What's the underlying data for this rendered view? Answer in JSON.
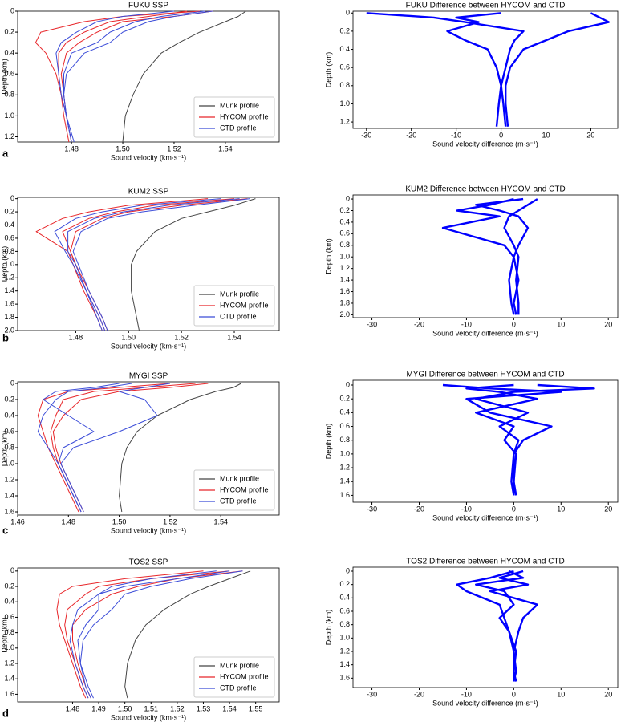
{
  "panel_labels": [
    "a",
    "b",
    "c",
    "d"
  ],
  "chart_data": [
    {
      "type": "line",
      "title": "FUKU SSP",
      "xlabel": "Sound velocity (km·s⁻¹)",
      "ylabel": "Depth (km)",
      "legend": "lower right",
      "xlim": [
        1.459,
        1.561
      ],
      "ylim": [
        0,
        1.25
      ],
      "xticks": [
        1.48,
        {
          "value": 1.5,
          "label": "1.50"
        },
        1.52,
        1.54
      ],
      "yticks": [
        0,
        0.2,
        0.4,
        0.6,
        0.8,
        {
          "value": 1,
          "label": "1.0"
        },
        1.2
      ],
      "y": [
        0,
        0.05,
        0.1,
        0.2,
        0.3,
        0.4,
        0.6,
        0.8,
        1.0,
        1.25
      ],
      "series": [
        {
          "name": "Munk profile",
          "color": "#444444",
          "values": [
            [
              1.548,
              1.545,
              1.54,
              1.53,
              1.522,
              1.515,
              1.508,
              1.504,
              1.501,
              1.5
            ]
          ]
        },
        {
          "name": "HYCOM profile",
          "color": "#e8262a",
          "values": [
            [
              1.535,
              1.52,
              1.5,
              1.49,
              1.483,
              1.478,
              1.476,
              1.477,
              1.478,
              1.48
            ],
            [
              1.525,
              1.51,
              1.495,
              1.485,
              1.478,
              1.475,
              1.475,
              1.476,
              1.477,
              1.479
            ],
            [
              1.53,
              1.5,
              1.485,
              1.468,
              1.466,
              1.47,
              1.474,
              1.476,
              1.478,
              1.48
            ]
          ]
        },
        {
          "name": "CTD profile",
          "color": "#3b4cd8",
          "values": [
            [
              1.532,
              1.515,
              1.505,
              1.495,
              1.49,
              1.48,
              1.477,
              1.477,
              1.478,
              1.48
            ],
            [
              1.52,
              1.5,
              1.49,
              1.482,
              1.476,
              1.474,
              1.475,
              1.476,
              1.478,
              1.481
            ],
            [
              1.535,
              1.52,
              1.51,
              1.5,
              1.495,
              1.485,
              1.478,
              1.477,
              1.478,
              1.48
            ]
          ]
        }
      ]
    },
    {
      "type": "line",
      "title": "FUKU Difference between HYCOM and CTD",
      "xlabel": "Sound velocity difference (m·s⁻¹)",
      "ylabel": "Depth (km)",
      "xlim": [
        -33,
        26
      ],
      "ylim": [
        -0.02,
        1.27
      ],
      "xticks": [
        -30,
        -20,
        -10,
        0,
        10,
        20
      ],
      "yticks": [
        0,
        0.2,
        0.4,
        0.6,
        0.8,
        {
          "value": 1,
          "label": "1.0"
        },
        1.2
      ],
      "y": [
        0,
        0.05,
        0.1,
        0.2,
        0.3,
        0.4,
        0.6,
        0.8,
        1.0,
        1.25
      ],
      "series": [
        {
          "color": "#0000ff",
          "values": [
            [
              0,
              -10,
              -5,
              -12,
              -8,
              -3,
              -1,
              0,
              0.5,
              1
            ],
            [
              -30,
              -15,
              -8,
              5,
              3,
              2,
              1,
              0,
              -0.5,
              -1
            ],
            [
              20,
              22,
              24,
              15,
              10,
              5,
              2,
              1,
              1,
              1.5
            ]
          ]
        }
      ]
    },
    {
      "type": "line",
      "title": "KUM2 SSP",
      "xlabel": "Sound velocity (km·s⁻¹)",
      "ylabel": "Depth (km)",
      "legend": "lower right",
      "xlim": [
        1.458,
        1.557
      ],
      "ylim": [
        -0.02,
        2
      ],
      "xticks": [
        1.48,
        {
          "value": 1.5,
          "label": "1.50"
        },
        1.52,
        1.54
      ],
      "yticks": [
        0,
        0.2,
        0.4,
        0.6,
        0.8,
        {
          "value": 1,
          "label": "1.0"
        },
        1.2,
        1.4,
        1.6,
        1.8,
        {
          "value": 2,
          "label": "2.0"
        }
      ],
      "y": [
        0,
        0.1,
        0.2,
        0.3,
        0.5,
        0.8,
        1.0,
        1.4,
        1.8,
        2.0
      ],
      "series": [
        {
          "name": "Munk profile",
          "color": "#444444",
          "values": [
            [
              1.548,
              1.54,
              1.53,
              1.52,
              1.51,
              1.503,
              1.501,
              1.501,
              1.503,
              1.504
            ]
          ]
        },
        {
          "name": "HYCOM profile",
          "color": "#e8262a",
          "values": [
            [
              1.54,
              1.51,
              1.495,
              1.485,
              1.475,
              1.478,
              1.48,
              1.484,
              1.489,
              1.491
            ],
            [
              1.53,
              1.5,
              1.485,
              1.475,
              1.465,
              1.477,
              1.479,
              1.483,
              1.488,
              1.49
            ],
            [
              1.545,
              1.52,
              1.5,
              1.49,
              1.48,
              1.478,
              1.48,
              1.485,
              1.49,
              1.492
            ]
          ]
        },
        {
          "name": "CTD profile",
          "color": "#3b4cd8",
          "values": [
            [
              1.542,
              1.515,
              1.498,
              1.487,
              1.477,
              1.477,
              1.48,
              1.484,
              1.489,
              1.491
            ],
            [
              1.535,
              1.505,
              1.49,
              1.48,
              1.472,
              1.476,
              1.479,
              1.484,
              1.488,
              1.49
            ],
            [
              1.546,
              1.525,
              1.505,
              1.492,
              1.482,
              1.479,
              1.481,
              1.485,
              1.49,
              1.492
            ]
          ]
        }
      ]
    },
    {
      "type": "line",
      "title": "KUM2 Difference between HYCOM and CTD",
      "xlabel": "Sound velocity difference (m·s⁻¹)",
      "ylabel": "Depth (km)",
      "xlim": [
        -34,
        22
      ],
      "ylim": [
        -0.07,
        2.05
      ],
      "xticks": [
        -30,
        -20,
        -10,
        0,
        10,
        20
      ],
      "yticks": [
        0,
        0.2,
        0.4,
        0.6,
        0.8,
        {
          "value": 1,
          "label": "1.0"
        },
        1.2,
        1.4,
        1.6,
        1.8,
        {
          "value": 2,
          "label": "2.0"
        }
      ],
      "y": [
        0,
        0.1,
        0.2,
        0.3,
        0.5,
        0.8,
        1.0,
        1.4,
        1.8,
        2.0
      ],
      "series": [
        {
          "color": "#0000ff",
          "values": [
            [
              0,
              -5,
              -12,
              -3,
              -15,
              -2,
              0,
              1,
              0,
              0.5
            ],
            [
              2,
              -8,
              -3,
              1,
              3,
              1,
              0,
              -1,
              -0.5,
              0
            ],
            [
              5,
              3,
              1,
              -1,
              -2,
              0,
              1,
              0.5,
              1,
              1
            ]
          ]
        }
      ]
    },
    {
      "type": "line",
      "title": "MYGI SSP",
      "xlabel": "Sound velocity (km·s⁻¹)",
      "ylabel": "Depth (km)",
      "legend": "lower right",
      "xlim": [
        1.46,
        1.563
      ],
      "ylim": [
        -0.02,
        1.64
      ],
      "xticks": [
        1.46,
        1.48,
        {
          "value": 1.5,
          "label": "1.50"
        },
        1.52,
        1.54
      ],
      "yticks": [
        0,
        0.2,
        0.4,
        0.6,
        0.8,
        {
          "value": 1,
          "label": "1.0"
        },
        1.2,
        1.4,
        1.6
      ],
      "y": [
        0,
        0.05,
        0.1,
        0.2,
        0.4,
        0.6,
        0.8,
        1.0,
        1.4,
        1.6
      ],
      "series": [
        {
          "name": "Munk profile",
          "color": "#444444",
          "values": [
            [
              1.548,
              1.545,
              1.538,
              1.528,
              1.515,
              1.507,
              1.503,
              1.501,
              1.5,
              1.501
            ]
          ]
        },
        {
          "name": "HYCOM profile",
          "color": "#e8262a",
          "values": [
            [
              1.53,
              1.51,
              1.49,
              1.478,
              1.475,
              1.473,
              1.474,
              1.476,
              1.482,
              1.485
            ],
            [
              1.52,
              1.5,
              1.48,
              1.47,
              1.468,
              1.47,
              1.472,
              1.475,
              1.481,
              1.484
            ],
            [
              1.535,
              1.52,
              1.5,
              1.485,
              1.478,
              1.474,
              1.475,
              1.477,
              1.483,
              1.486
            ]
          ]
        },
        {
          "name": "CTD profile",
          "color": "#3b4cd8",
          "values": [
            [
              1.5,
              1.49,
              1.475,
              1.47,
              1.48,
              1.49,
              1.478,
              1.476,
              1.482,
              1.485
            ],
            [
              1.52,
              1.51,
              1.5,
              1.51,
              1.515,
              1.5,
              1.482,
              1.477,
              1.483,
              1.486
            ],
            [
              1.505,
              1.495,
              1.48,
              1.475,
              1.47,
              1.468,
              1.472,
              1.476,
              1.482,
              1.485
            ]
          ]
        }
      ]
    },
    {
      "type": "line",
      "title": "MYGI Difference between HYCOM and CTD",
      "xlabel": "Sound velocity difference (m·s⁻¹)",
      "ylabel": "Depth (km)",
      "xlim": [
        -34,
        22
      ],
      "ylim": [
        -0.07,
        1.7
      ],
      "xticks": [
        -30,
        -20,
        -10,
        0,
        10,
        20
      ],
      "yticks": [
        0,
        0.2,
        0.4,
        0.6,
        0.8,
        {
          "value": 1,
          "label": "1.0"
        },
        1.2,
        1.4,
        1.6
      ],
      "y": [
        0,
        0.05,
        0.1,
        0.2,
        0.4,
        0.6,
        0.8,
        1.0,
        1.4,
        1.6
      ],
      "series": [
        {
          "color": "#0000ff",
          "values": [
            [
              -15,
              -5,
              10,
              -10,
              -5,
              8,
              2,
              0,
              0,
              0.5
            ],
            [
              5,
              17,
              0,
              -8,
              3,
              -3,
              1,
              0,
              -0.5,
              0
            ],
            [
              0,
              -10,
              -3,
              5,
              -8,
              0,
              -2,
              0.5,
              0,
              0
            ]
          ]
        }
      ]
    },
    {
      "type": "line",
      "title": "TOS2 SSP",
      "xlabel": "Sound velocity (km·s⁻¹)",
      "ylabel": "Depth (km)",
      "legend": "lower right",
      "xlim": [
        1.459,
        1.559
      ],
      "ylim": [
        -0.04,
        1.7
      ],
      "xticks": [
        1.48,
        1.49,
        {
          "value": 1.5,
          "label": "1.50"
        },
        1.51,
        1.52,
        1.53,
        1.54,
        1.55
      ],
      "yticks": [
        0,
        0.2,
        0.4,
        0.6,
        0.8,
        {
          "value": 1,
          "label": "1.0"
        },
        1.2,
        1.4,
        1.6
      ],
      "y": [
        0,
        0.1,
        0.2,
        0.3,
        0.5,
        0.7,
        0.9,
        1.2,
        1.5,
        1.65
      ],
      "series": [
        {
          "name": "Munk profile",
          "color": "#444444",
          "values": [
            [
              1.548,
              1.54,
              1.532,
              1.525,
              1.515,
              1.508,
              1.504,
              1.501,
              1.5,
              1.501
            ]
          ]
        },
        {
          "name": "HYCOM profile",
          "color": "#e8262a",
          "values": [
            [
              1.54,
              1.51,
              1.49,
              1.485,
              1.478,
              1.477,
              1.478,
              1.481,
              1.484,
              1.486
            ],
            [
              1.53,
              1.5,
              1.48,
              1.475,
              1.474,
              1.475,
              1.477,
              1.48,
              1.483,
              1.485
            ],
            [
              1.545,
              1.52,
              1.505,
              1.495,
              1.485,
              1.48,
              1.48,
              1.482,
              1.485,
              1.487
            ]
          ]
        },
        {
          "name": "CTD profile",
          "color": "#3b4cd8",
          "values": [
            [
              1.54,
              1.52,
              1.5,
              1.49,
              1.49,
              1.485,
              1.482,
              1.483,
              1.485,
              1.487
            ],
            [
              1.535,
              1.51,
              1.495,
              1.49,
              1.482,
              1.48,
              1.479,
              1.481,
              1.484,
              1.486
            ],
            [
              1.545,
              1.525,
              1.51,
              1.5,
              1.495,
              1.488,
              1.484,
              1.483,
              1.486,
              1.488
            ]
          ]
        }
      ]
    },
    {
      "type": "line",
      "title": "TOS2 Difference between HYCOM and CTD",
      "xlabel": "Sound velocity difference (m·s⁻¹)",
      "ylabel": "Depth (km)",
      "xlim": [
        -34,
        22
      ],
      "ylim": [
        -0.06,
        1.74
      ],
      "xticks": [
        -30,
        -20,
        -10,
        0,
        10,
        20
      ],
      "yticks": [
        0,
        0.2,
        0.4,
        0.6,
        0.8,
        {
          "value": 1,
          "label": "1.0"
        },
        1.2,
        1.4,
        1.6
      ],
      "y": [
        0,
        0.1,
        0.2,
        0.3,
        0.5,
        0.7,
        0.9,
        1.2,
        1.5,
        1.65
      ],
      "series": [
        {
          "color": "#0000ff",
          "values": [
            [
              0,
              -5,
              -12,
              -10,
              -3,
              -2,
              -1,
              0,
              0.5,
              0
            ],
            [
              2,
              -3,
              3,
              -5,
              5,
              2,
              1,
              0,
              0,
              0.5
            ],
            [
              -1,
              2,
              -8,
              -2,
              0,
              -3,
              -1,
              0.5,
              0,
              0
            ]
          ]
        }
      ]
    }
  ]
}
